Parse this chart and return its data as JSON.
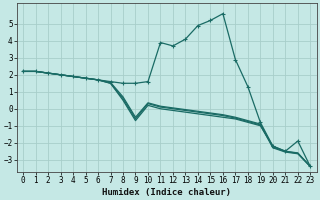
{
  "xlabel": "Humidex (Indice chaleur)",
  "bg_color": "#c5e8e5",
  "grid_color": "#a8ceca",
  "line_color": "#1a6b65",
  "xlim": [
    -0.5,
    23.5
  ],
  "ylim": [
    -3.7,
    6.2
  ],
  "xticks": [
    0,
    1,
    2,
    3,
    4,
    5,
    6,
    7,
    8,
    9,
    10,
    11,
    12,
    13,
    14,
    15,
    16,
    17,
    18,
    19,
    20,
    21,
    22,
    23
  ],
  "yticks": [
    -3,
    -2,
    -1,
    0,
    1,
    2,
    3,
    4,
    5
  ],
  "series": [
    {
      "x": [
        0,
        1,
        2,
        3,
        4,
        5,
        6,
        7,
        8,
        9,
        10,
        11,
        12,
        13,
        14,
        15,
        16,
        17,
        18,
        19,
        20,
        21,
        22,
        23
      ],
      "y": [
        2.2,
        2.2,
        2.1,
        2.0,
        1.9,
        1.8,
        1.7,
        1.6,
        1.5,
        1.5,
        1.6,
        3.9,
        3.7,
        4.1,
        4.9,
        5.2,
        5.6,
        2.9,
        1.3,
        -0.8,
        -2.2,
        -2.5,
        -1.9,
        -3.4
      ],
      "marker": "+"
    },
    {
      "x": [
        0,
        1,
        2,
        3,
        4,
        5,
        6,
        7,
        8,
        9,
        10,
        11,
        12,
        13,
        14,
        15,
        16,
        17,
        18,
        19,
        20,
        21,
        22,
        23
      ],
      "y": [
        2.2,
        2.2,
        2.1,
        2.0,
        1.9,
        1.8,
        1.7,
        1.5,
        0.5,
        -0.7,
        0.2,
        -0.0,
        -0.1,
        -0.2,
        -0.3,
        -0.4,
        -0.5,
        -0.6,
        -0.8,
        -1.0,
        -2.2,
        -2.5,
        -2.6,
        -3.4
      ],
      "marker": null
    },
    {
      "x": [
        0,
        1,
        2,
        3,
        4,
        5,
        6,
        7,
        8,
        9,
        10,
        11,
        12,
        13,
        14,
        15,
        16,
        17,
        18,
        19,
        20,
        21,
        22,
        23
      ],
      "y": [
        2.2,
        2.2,
        2.1,
        2.0,
        1.9,
        1.8,
        1.7,
        1.5,
        0.6,
        -0.6,
        0.3,
        0.1,
        0.0,
        -0.1,
        -0.2,
        -0.3,
        -0.4,
        -0.55,
        -0.75,
        -0.95,
        -2.3,
        -2.55,
        -2.65,
        -3.4
      ],
      "marker": null
    },
    {
      "x": [
        0,
        1,
        2,
        3,
        4,
        5,
        6,
        7,
        8,
        9,
        10,
        11,
        12,
        13,
        14,
        15,
        16,
        17,
        18,
        19,
        20,
        21,
        22,
        23
      ],
      "y": [
        2.2,
        2.2,
        2.1,
        2.0,
        1.9,
        1.8,
        1.7,
        1.55,
        0.7,
        -0.5,
        0.35,
        0.15,
        0.05,
        -0.05,
        -0.15,
        -0.25,
        -0.35,
        -0.5,
        -0.7,
        -0.9,
        -2.25,
        -2.52,
        -2.62,
        -3.4
      ],
      "marker": null
    }
  ]
}
